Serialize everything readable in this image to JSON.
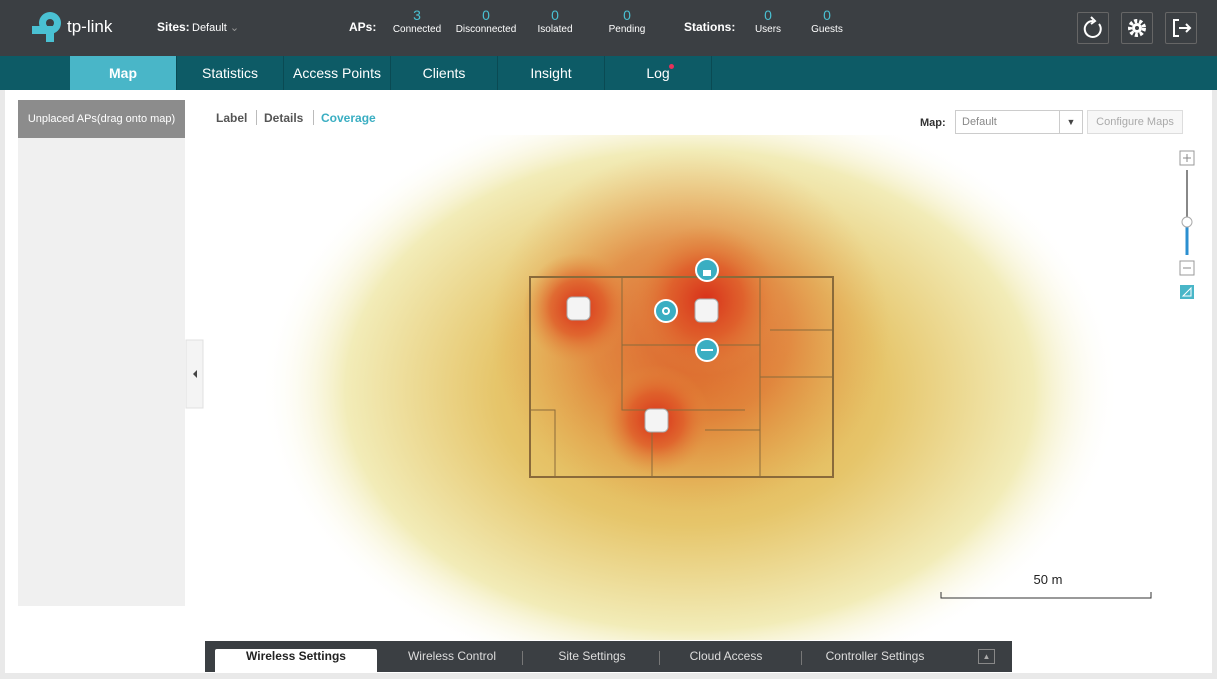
{
  "header": {
    "logo": "tp-link",
    "sites_label": "Sites:",
    "site": "Default",
    "aps_label": "APs:",
    "aps": [
      {
        "value": 3,
        "label": "Connected"
      },
      {
        "value": 0,
        "label": "Disconnected"
      },
      {
        "value": 0,
        "label": "Isolated"
      },
      {
        "value": 0,
        "label": "Pending"
      }
    ],
    "stations_label": "Stations:",
    "stations": [
      {
        "value": 0,
        "label": "Users"
      },
      {
        "value": 0,
        "label": "Guests"
      }
    ]
  },
  "nav": [
    "Map",
    "Statistics",
    "Access Points",
    "Clients",
    "Insight",
    "Log"
  ],
  "sidebar": {
    "title": "Unplaced APs(drag onto map)"
  },
  "toolbar": {
    "views": [
      "Label",
      "Details",
      "Coverage"
    ],
    "map_label": "Map:",
    "map": "Default",
    "configure": "Configure Maps"
  },
  "scale": "50 m",
  "bottom_tabs": [
    "Wireless Settings",
    "Wireless Control",
    "Site Settings",
    "Cloud Access",
    "Controller Settings"
  ]
}
